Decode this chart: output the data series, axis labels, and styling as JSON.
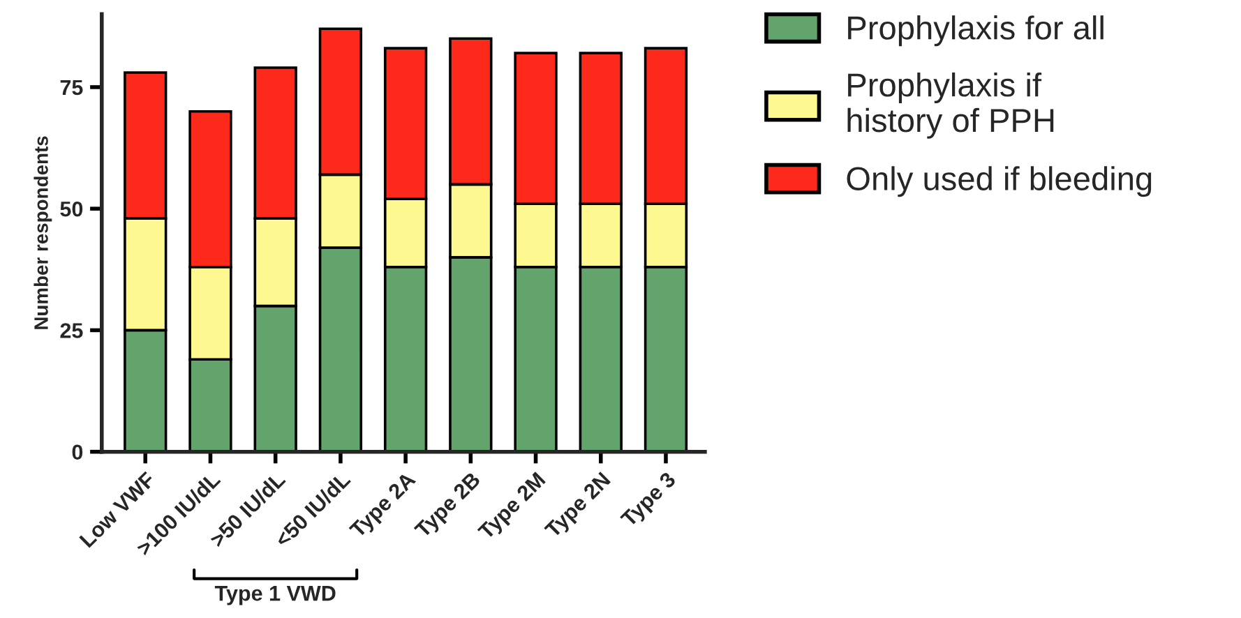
{
  "chart_data": {
    "type": "bar",
    "stacked": true,
    "ylabel": "Number respondents",
    "categories": [
      "Low VWF",
      ">100 IU/dL",
      ">50 IU/dL",
      "<50 IU/dL",
      "Type 2A",
      "Type 2B",
      "Type 2M",
      "Type 2N",
      "Type 3"
    ],
    "series": [
      {
        "name": "Prophylaxis for all",
        "color": "#62a46b",
        "values": [
          25,
          19,
          30,
          42,
          38,
          40,
          38,
          38,
          38
        ]
      },
      {
        "name": "Prophylaxis if\nhistory of PPH",
        "color": "#fdf88f",
        "values": [
          23,
          19,
          18,
          15,
          14,
          15,
          13,
          13,
          13
        ]
      },
      {
        "name": "Only used if bleeding",
        "color": "#fd2a1c",
        "values": [
          30,
          32,
          31,
          30,
          31,
          30,
          31,
          31,
          32
        ]
      }
    ],
    "ylim": [
      0,
      90
    ],
    "yticks": [
      0,
      25,
      50,
      75
    ],
    "grid": false,
    "legend": "right",
    "annotations": [
      "Type 1 VWD"
    ]
  }
}
